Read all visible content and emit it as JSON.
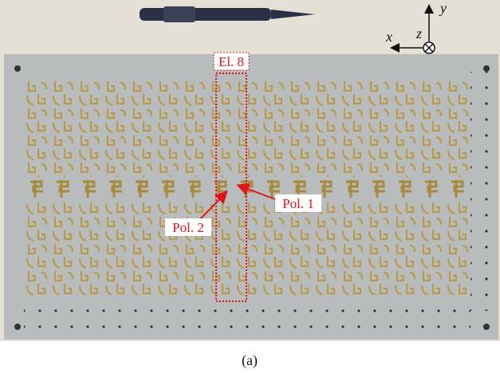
{
  "annotations": {
    "element": "El. 8",
    "pol1": "Pol. 1",
    "pol2": "Pol. 2"
  },
  "axes": {
    "x": "x",
    "y": "y",
    "z": "z"
  },
  "caption": "(a)"
}
